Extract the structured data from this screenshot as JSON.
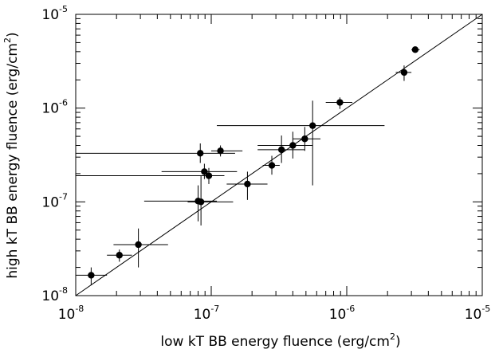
{
  "chart_data": {
    "type": "scatter",
    "title": "",
    "xlabel": "low kT BB energy fluence (erg/cm",
    "xlabel_sup": "2",
    "xlabel_close": ")",
    "ylabel": "high kT BB energy fluence (erg/cm",
    "ylabel_sup": "2",
    "ylabel_close": ")",
    "xscale": "log",
    "yscale": "log",
    "xlim": [
      1e-08,
      1e-05
    ],
    "ylim": [
      1e-08,
      1e-05
    ],
    "grid": false,
    "x_ticks": [
      {
        "base": "10",
        "exp": "-8",
        "value": 1e-08
      },
      {
        "base": "10",
        "exp": "-7",
        "value": 1e-07
      },
      {
        "base": "10",
        "exp": "-6",
        "value": 1e-06
      },
      {
        "base": "10",
        "exp": "-5",
        "value": 1e-05
      }
    ],
    "y_ticks": [
      {
        "base": "10",
        "exp": "-8",
        "value": 1e-08
      },
      {
        "base": "10",
        "exp": "-7",
        "value": 1e-07
      },
      {
        "base": "10",
        "exp": "-6",
        "value": 1e-06
      },
      {
        "base": "10",
        "exp": "-5",
        "value": 1e-05
      }
    ],
    "reference_line": {
      "type": "y=x"
    },
    "points": [
      {
        "x": 1.3e-08,
        "y": 1.65e-08,
        "xerr": [
          1e-08,
          1.7e-08
        ],
        "yerr": [
          1.3e-08,
          2e-08
        ]
      },
      {
        "x": 2.1e-08,
        "y": 2.7e-08,
        "xerr": [
          1.7e-08,
          2.6e-08
        ],
        "yerr": [
          2.3e-08,
          3.1e-08
        ]
      },
      {
        "x": 2.9e-08,
        "y": 3.5e-08,
        "xerr": [
          1.9e-08,
          4.8e-08
        ],
        "yerr": [
          2e-08,
          5.2e-08
        ]
      },
      {
        "x": 8e-08,
        "y": 1.02e-07,
        "xerr": [
          3.2e-08,
          1.1e-07
        ],
        "yerr": [
          6.2e-08,
          1.5e-07
        ]
      },
      {
        "x": 8.4e-08,
        "y": 1e-07,
        "xerr": [
          6.7e-08,
          1.45e-07
        ],
        "yerr": [
          5.6e-08,
          1.9e-07
        ]
      },
      {
        "x": 8.3e-08,
        "y": 3.3e-07,
        "xerr": [
          1e-08,
          1.5e-07
        ],
        "yerr": [
          2.6e-07,
          4.2e-07
        ]
      },
      {
        "x": 8.9e-08,
        "y": 2.1e-07,
        "xerr": [
          4.3e-08,
          1.55e-07
        ],
        "yerr": [
          1.75e-07,
          2.55e-07
        ]
      },
      {
        "x": 9.6e-08,
        "y": 1.9e-07,
        "xerr": [
          1e-08,
          1.25e-07
        ],
        "yerr": [
          1.55e-07,
          2.3e-07
        ]
      },
      {
        "x": 1.17e-07,
        "y": 3.5e-07,
        "xerr": [
          1e-07,
          1.7e-07
        ],
        "yerr": [
          3.05e-07,
          4e-07
        ]
      },
      {
        "x": 1.85e-07,
        "y": 1.55e-07,
        "xerr": [
          1.3e-07,
          2.6e-07
        ],
        "yerr": [
          1.05e-07,
          2.1e-07
        ]
      },
      {
        "x": 2.8e-07,
        "y": 2.45e-07,
        "xerr": [
          2.4e-07,
          3.2e-07
        ],
        "yerr": [
          1.95e-07,
          3.1e-07
        ]
      },
      {
        "x": 3.3e-07,
        "y": 3.6e-07,
        "xerr": [
          2.2e-07,
          4.9e-07
        ],
        "yerr": [
          2.6e-07,
          5.1e-07
        ]
      },
      {
        "x": 4e-07,
        "y": 4e-07,
        "xerr": [
          2.2e-07,
          5.6e-07
        ],
        "yerr": [
          2.9e-07,
          5.6e-07
        ]
      },
      {
        "x": 4.9e-07,
        "y": 4.7e-07,
        "xerr": [
          4e-07,
          6.4e-07
        ],
        "yerr": [
          3.5e-07,
          6.3e-07
        ]
      },
      {
        "x": 5.6e-07,
        "y": 6.5e-07,
        "xerr": [
          1.1e-07,
          1.9e-06
        ],
        "yerr": [
          1.5e-07,
          1.2e-06
        ]
      },
      {
        "x": 8.9e-07,
        "y": 1.15e-06,
        "xerr": [
          7e-07,
          1.1e-06
        ],
        "yerr": [
          9.8e-07,
          1.3e-06
        ]
      },
      {
        "x": 2.65e-06,
        "y": 2.4e-06,
        "xerr": [
          2.3e-06,
          3e-06
        ],
        "yerr": [
          1.95e-06,
          2.85e-06
        ]
      },
      {
        "x": 3.2e-06,
        "y": 4.2e-06,
        "xerr": [
          3e-06,
          3.45e-06
        ],
        "yerr": [
          3.9e-06,
          4.55e-06
        ]
      }
    ]
  }
}
